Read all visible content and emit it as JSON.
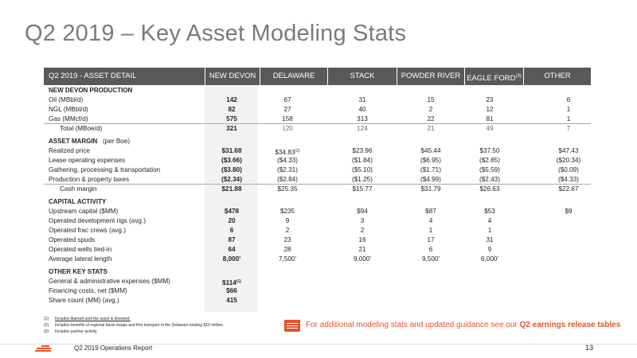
{
  "title": "Q2 2019 – Key Asset Modeling Stats",
  "header": {
    "label": "Q2 2019 - ASSET DETAIL",
    "columns": [
      "NEW DEVON",
      "DELAWARE",
      "STACK",
      "POWDER RIVER",
      "EAGLE FORD",
      "OTHER"
    ],
    "eagle_ford_sup": "(3)"
  },
  "production": {
    "title": "NEW DEVON PRODUCTION",
    "rows": [
      {
        "label": "Oil (MBbl/d)",
        "values": [
          "142",
          "67",
          "31",
          "15",
          "23",
          "6"
        ]
      },
      {
        "label": "NGL (MBbl/d)",
        "values": [
          "82",
          "27",
          "40",
          "2",
          "12",
          "1"
        ]
      },
      {
        "label": "Gas (MMcf/d)",
        "values": [
          "575",
          "158",
          "313",
          "22",
          "81",
          "1"
        ]
      },
      {
        "label": "Total (MBoe/d)",
        "values": [
          "321",
          "120",
          "124",
          "21",
          "49",
          "7"
        ]
      }
    ]
  },
  "margin": {
    "title": "ASSET MARGIN",
    "title_suffix": "(per Boe)",
    "rows": [
      {
        "label": "Realized price",
        "values": [
          "$31.68",
          "$34.83",
          "$23.96",
          "$45.44",
          "$37.50",
          "$47.43"
        ],
        "sup": "(2)"
      },
      {
        "label": "Lease operating expenses",
        "values": [
          "($3.66)",
          "($4.33)",
          "($1.84)",
          "($6.95)",
          "($2.85)",
          "($20.34)"
        ]
      },
      {
        "label": "Gathering, processing & transportation",
        "values": [
          "($3.80)",
          "($2.31)",
          "($5.10)",
          "($1.71)",
          "($5.59)",
          "($0.09)"
        ]
      },
      {
        "label": "Production & property taxes",
        "values": [
          "($2.34)",
          "($2.84)",
          "($1.25)",
          "($4.99)",
          "($2.43)",
          "($4.33)"
        ]
      },
      {
        "label": "Cash margin",
        "values": [
          "$21.88",
          "$25.35",
          "$15.77",
          "$31.79",
          "$26.63",
          "$22.67"
        ]
      }
    ]
  },
  "capital": {
    "title": "CAPITAL ACTIVITY",
    "rows": [
      {
        "label": "Upstream capital ($MM)",
        "values": [
          "$478",
          "$235",
          "$94",
          "$87",
          "$53",
          "$9"
        ]
      },
      {
        "label": "Operated development rigs (avg.)",
        "values": [
          "20",
          "9",
          "3",
          "4",
          "4",
          ""
        ]
      },
      {
        "label": "Operated frac crews (avg.)",
        "values": [
          "6",
          "2",
          "2",
          "1",
          "1",
          ""
        ]
      },
      {
        "label": "Operated spuds",
        "values": [
          "87",
          "23",
          "16",
          "17",
          "31",
          ""
        ]
      },
      {
        "label": "Operated wells tied-in",
        "values": [
          "64",
          "28",
          "21",
          "6",
          "9",
          ""
        ]
      },
      {
        "label": "Average lateral length",
        "values": [
          "8,000'",
          "7,500'",
          "9,000'",
          "9,500'",
          "6,000'",
          ""
        ]
      }
    ]
  },
  "other": {
    "title": "OTHER KEY STATS",
    "rows": [
      {
        "label": "General & administrative expenses ($MM)",
        "value": "$114",
        "sup": "(1)"
      },
      {
        "label": "Financing costs, net ($MM)",
        "value": "$66"
      },
      {
        "label": "Share count (MM) (avg.)",
        "value": "415"
      }
    ]
  },
  "footnotes": [
    {
      "n": "(1)",
      "text": "Includes Barnett until the asset is divested."
    },
    {
      "n": "(2)",
      "text": "Includes benefits of regional basis swaps and firm transport in the Delaware totaling $10 million."
    },
    {
      "n": "(3)",
      "text": "Includes partner activity."
    }
  ],
  "callout": {
    "icon": "document-icon",
    "text": "For additional modeling stats and updated guidance see our",
    "bold_text": "Q2 earnings release tables"
  },
  "footer": {
    "report": "Q2 2019 Operations Report",
    "page": "13"
  },
  "colors": {
    "accent": "#e8532b",
    "header_bg": "#58595b",
    "title": "#7a7a7a"
  }
}
